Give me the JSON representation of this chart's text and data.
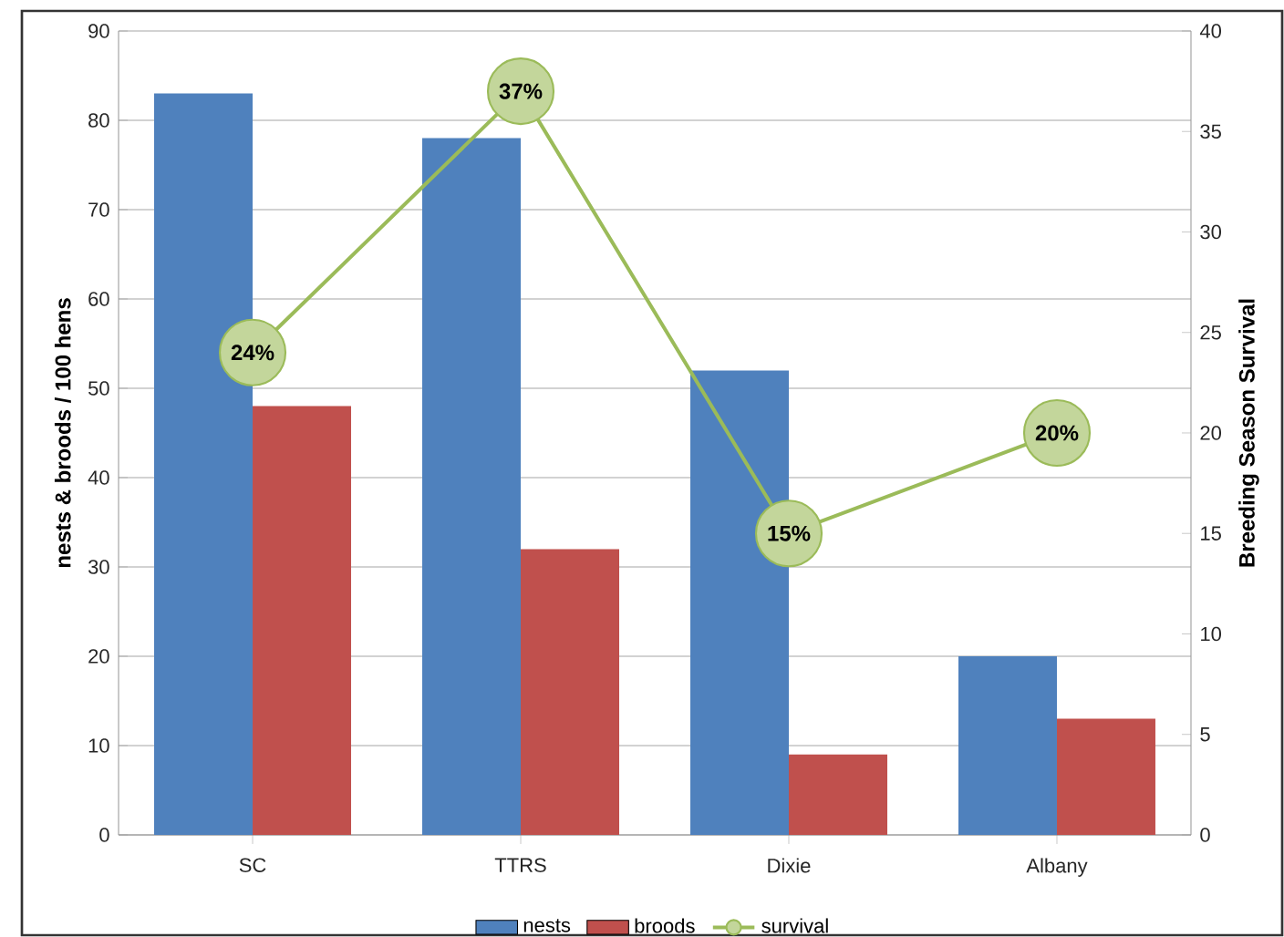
{
  "chart_data": {
    "type": "bar",
    "ylabel": "nests & broods / 100 hens",
    "y2label": "Breeding Season Survival",
    "categories": [
      "SC",
      "TTRS",
      "Dixie",
      "Albany"
    ],
    "series": [
      {
        "name": "nests",
        "color": "#4f81bd",
        "values": [
          83,
          78,
          52,
          20
        ]
      },
      {
        "name": "broods",
        "color": "#c0504d",
        "values": [
          48,
          32,
          9,
          13
        ]
      },
      {
        "name": "survival",
        "type": "line",
        "axis": "y2",
        "color": "#9bbb59",
        "marker": "circle",
        "values": [
          24,
          37,
          15,
          20
        ],
        "value_labels": [
          "24%",
          "37%",
          "15%",
          "20%"
        ]
      }
    ],
    "ylim": [
      0,
      90
    ],
    "yticks": [
      0,
      10,
      20,
      30,
      40,
      50,
      60,
      70,
      80,
      90
    ],
    "y2lim": [
      0,
      40
    ],
    "y2ticks": [
      0,
      5,
      10,
      15,
      20,
      25,
      30,
      35,
      40
    ],
    "grid": "y",
    "legend": "bottom"
  }
}
